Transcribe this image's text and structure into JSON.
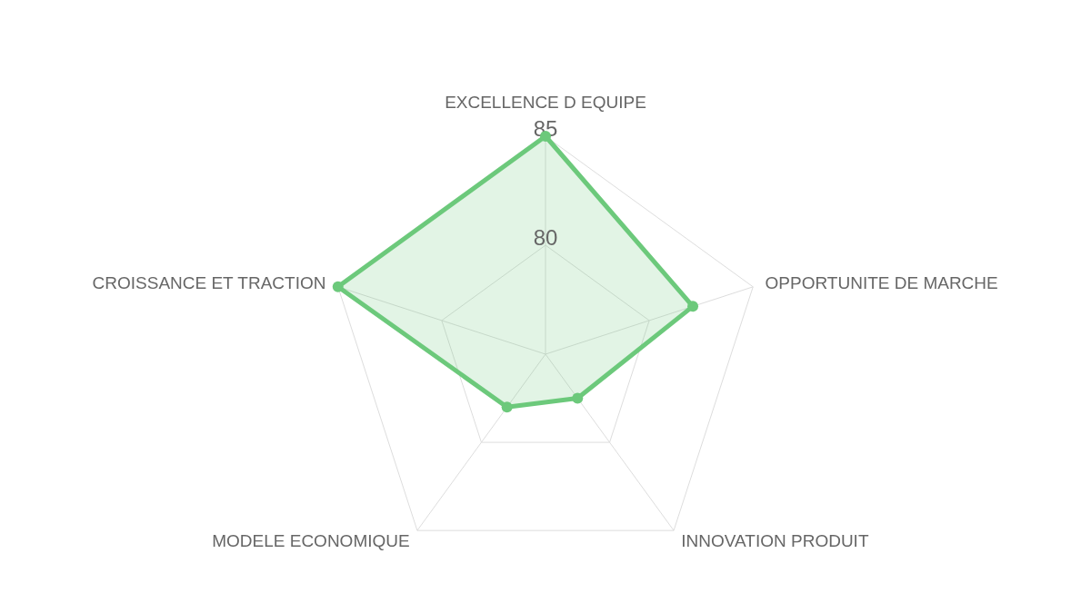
{
  "chart_data": {
    "type": "radar",
    "categories": [
      "EXCELLENCE D EQUIPE",
      "OPPORTUNITE DE MARCHE",
      "INNOVATION PRODUIT",
      "MODELE ECONOMIQUE",
      "CROISSANCE ET TRACTION"
    ],
    "series": [
      {
        "color": "#6cc97b",
        "values": [
          85,
          82.1,
          77.5,
          78,
          85
        ]
      }
    ],
    "ylim": [
      75,
      85
    ],
    "yticks": [
      80,
      85
    ],
    "grid": true,
    "marker": "circle"
  }
}
